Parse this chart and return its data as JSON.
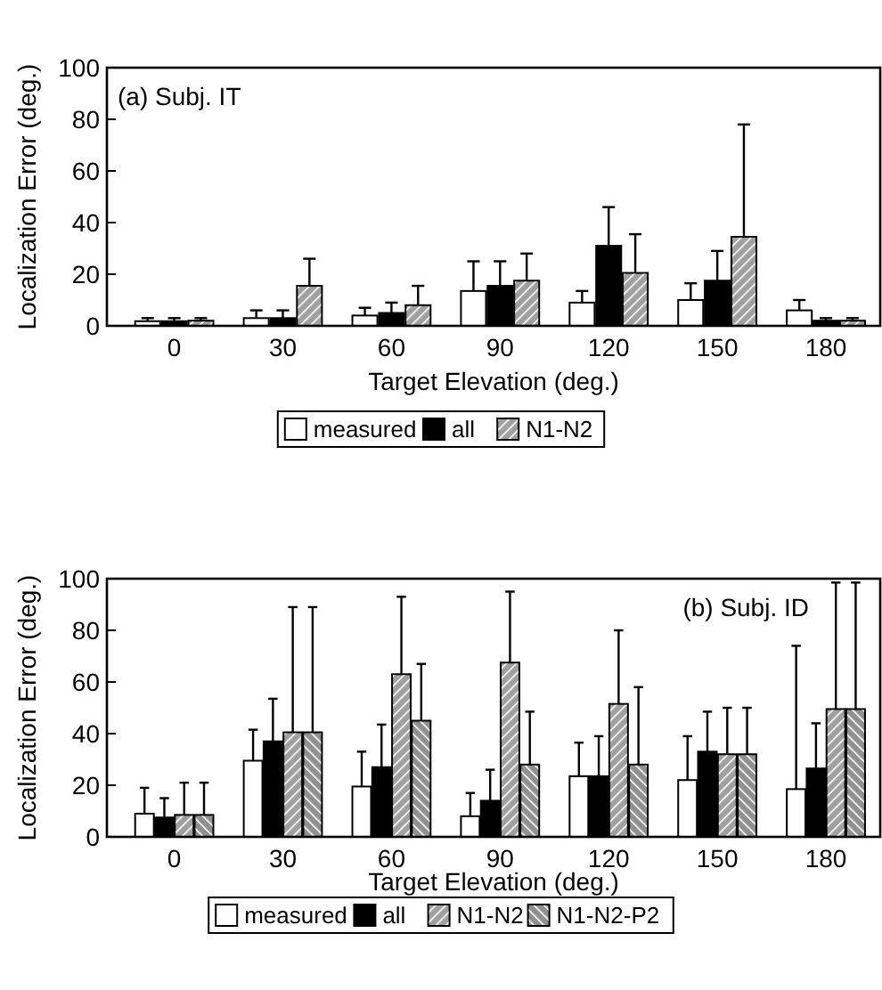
{
  "chart_data": [
    {
      "type": "bar",
      "title": "(a) Subj. IT",
      "xlabel": "Target Elevation (deg.)",
      "ylabel": "Localization Error (deg.)",
      "categories": [
        "0",
        "30",
        "60",
        "90",
        "120",
        "150",
        "180"
      ],
      "ylim": [
        0,
        100
      ],
      "yticks": [
        0,
        20,
        40,
        60,
        80,
        100
      ],
      "legend": "bottom",
      "grid": false,
      "series": [
        {
          "name": "measured",
          "color": "#ffffff",
          "values": [
            1.8,
            3,
            4,
            13.5,
            9,
            10,
            6
          ],
          "errors": [
            [
              1.8,
              3
            ],
            [
              3,
              6
            ],
            [
              4,
              7
            ],
            [
              13.5,
              25
            ],
            [
              9,
              13.5
            ],
            [
              10,
              16.5
            ],
            [
              6,
              10
            ]
          ]
        },
        {
          "name": "all",
          "color": "#000000",
          "values": [
            1.8,
            3,
            5,
            15.5,
            31,
            17.5,
            2
          ],
          "errors": [
            [
              1.8,
              3
            ],
            [
              3,
              6
            ],
            [
              5,
              9
            ],
            [
              15.5,
              25
            ],
            [
              31,
              46
            ],
            [
              17.5,
              29
            ],
            [
              2,
              3
            ]
          ]
        },
        {
          "name": "N1-N2",
          "color": "#a0a0a0",
          "values": [
            2,
            15.5,
            8,
            17.5,
            20.5,
            34.5,
            2
          ],
          "errors": [
            [
              2,
              3
            ],
            [
              15.5,
              26
            ],
            [
              8,
              15.5
            ],
            [
              17.5,
              28
            ],
            [
              20.5,
              35.5
            ],
            [
              34.5,
              78
            ],
            [
              2,
              3
            ]
          ]
        }
      ]
    },
    {
      "type": "bar",
      "title": "(b) Subj. ID",
      "xlabel": "Target Elevation (deg.)",
      "ylabel": "Localization Error (deg.)",
      "categories": [
        "0",
        "30",
        "60",
        "90",
        "120",
        "150",
        "180"
      ],
      "ylim": [
        0,
        100
      ],
      "yticks": [
        0,
        20,
        40,
        60,
        80,
        100
      ],
      "legend": "bottom",
      "grid": false,
      "series": [
        {
          "name": "measured",
          "color": "#ffffff",
          "values": [
            9,
            29.5,
            19.5,
            8,
            23.5,
            22,
            18.5
          ],
          "errors": [
            [
              9,
              19
            ],
            [
              29.5,
              41.5
            ],
            [
              19.5,
              33
            ],
            [
              8,
              17
            ],
            [
              23.5,
              36.5
            ],
            [
              22,
              39
            ],
            [
              18.5,
              74
            ]
          ]
        },
        {
          "name": "all",
          "color": "#000000",
          "values": [
            7.5,
            37,
            27,
            14,
            23.5,
            33,
            26.5
          ],
          "errors": [
            [
              7.5,
              15
            ],
            [
              37,
              53.5
            ],
            [
              27,
              43.5
            ],
            [
              14,
              26
            ],
            [
              23.5,
              39
            ],
            [
              33,
              48.5
            ],
            [
              26.5,
              44
            ]
          ]
        },
        {
          "name": "N1-N2",
          "color": "#a0a0a0",
          "values": [
            8.5,
            40.5,
            63,
            67.5,
            51.5,
            32,
            49.5
          ],
          "errors": [
            [
              8.5,
              21
            ],
            [
              40.5,
              89
            ],
            [
              63,
              93
            ],
            [
              67.5,
              95
            ],
            [
              51.5,
              80
            ],
            [
              32,
              50
            ],
            [
              49.5,
              98.5
            ]
          ]
        },
        {
          "name": "N1-N2-P2",
          "color": "#909090",
          "values": [
            8.5,
            40.5,
            45,
            28,
            28,
            32,
            49.5
          ],
          "errors": [
            [
              8.5,
              21
            ],
            [
              40.5,
              89
            ],
            [
              45,
              67
            ],
            [
              28,
              48.5
            ],
            [
              28,
              58
            ],
            [
              32,
              50
            ],
            [
              49.5,
              98.5
            ]
          ]
        }
      ]
    }
  ]
}
